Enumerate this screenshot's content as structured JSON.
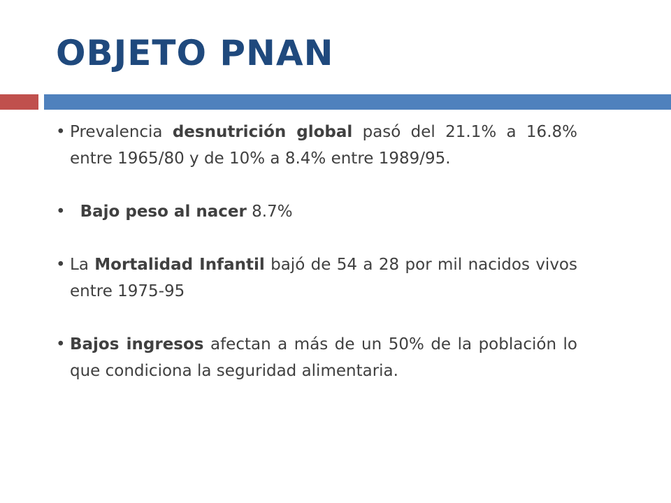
{
  "slide": {
    "title": "OBJETO PNAN",
    "accent_colors": {
      "title": "#1f497d",
      "bar_left": "#c0504d",
      "bar_right": "#4f81bd",
      "text": "#404040"
    },
    "bullets": [
      {
        "pre": " Prevalencia ",
        "bold": "desnutrición global",
        "post": " pasó del 21.1% a 16.8% entre 1965/80 y de 10% a 8.4% entre 1989/95."
      },
      {
        "pre": "  ",
        "bold": "Bajo peso al nacer",
        "post": " 8.7%"
      },
      {
        "pre": " La ",
        "bold": "Mortalidad Infantil",
        "post": " bajó de 54 a 28 por mil nacidos vivos entre 1975-95"
      },
      {
        "pre": "",
        "bold": "Bajos ingresos",
        "post": " afectan a más de un 50% de la población lo que condiciona la seguridad alimentaria."
      }
    ]
  }
}
